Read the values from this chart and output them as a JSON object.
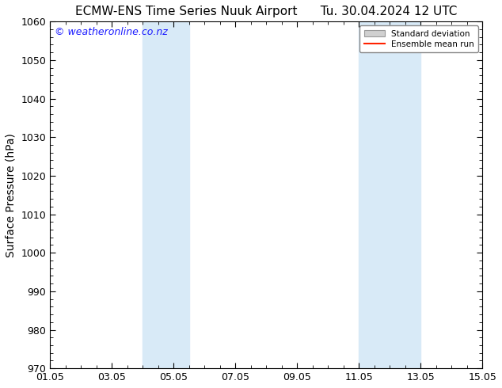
{
  "title_left": "ECMW-ENS Time Series Nuuk Airport",
  "title_right": "Tu. 30.04.2024 12 UTC",
  "ylabel": "Surface Pressure (hPa)",
  "ylim": [
    970,
    1060
  ],
  "yticks": [
    970,
    980,
    990,
    1000,
    1010,
    1020,
    1030,
    1040,
    1050,
    1060
  ],
  "xlim_start": 0,
  "xlim_end": 14,
  "xtick_labels": [
    "01.05",
    "03.05",
    "05.05",
    "07.05",
    "09.05",
    "11.05",
    "13.05",
    "15.05"
  ],
  "xtick_positions": [
    0,
    2,
    4,
    6,
    8,
    10,
    12,
    14
  ],
  "shaded_bands": [
    {
      "x_start": 3.0,
      "x_end": 4.5
    },
    {
      "x_start": 10.0,
      "x_end": 12.0
    }
  ],
  "shade_color": "#d8eaf7",
  "background_color": "#ffffff",
  "watermark_text": "© weatheronline.co.nz",
  "watermark_color": "#1a1aff",
  "legend_std_dev_label": "Standard deviation",
  "legend_mean_label": "Ensemble mean run",
  "legend_std_color": "#d0d0d0",
  "legend_std_edge": "#999999",
  "legend_mean_color": "#ff2200",
  "title_fontsize": 11,
  "ylabel_fontsize": 10,
  "tick_fontsize": 9,
  "watermark_fontsize": 9
}
